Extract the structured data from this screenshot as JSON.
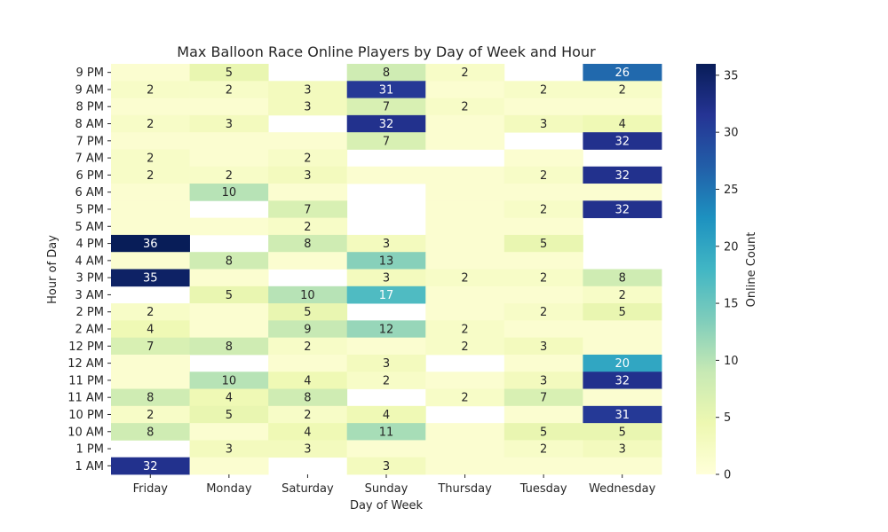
{
  "chart_data": {
    "type": "heatmap",
    "title": "Max Balloon Race Online Players by Day of Week and Hour",
    "xlabel": "Day of Week",
    "ylabel": "Hour of Day",
    "colorbar_label": "Online Count",
    "colormap": "YlGnBu",
    "vmin": 0,
    "vmax": 36,
    "colorbar_ticks": [
      0,
      5,
      10,
      15,
      20,
      25,
      30,
      35
    ],
    "colorbar_tick_labels": [
      "0",
      "5",
      "10",
      "15",
      "20",
      "25",
      "30",
      "35"
    ],
    "columns": [
      "Friday",
      "Monday",
      "Saturday",
      "Sunday",
      "Thursday",
      "Tuesday",
      "Wednesday"
    ],
    "rows": [
      "9 PM",
      "9 AM",
      "8 PM",
      "8 AM",
      "7 PM",
      "7 AM",
      "6 PM",
      "6 AM",
      "5 PM",
      "5 AM",
      "4 PM",
      "4 AM",
      "3 PM",
      "3 AM",
      "2 PM",
      "2 AM",
      "12 PM",
      "12 AM",
      "11 PM",
      "11 AM",
      "10 PM",
      "10 AM",
      "1 PM",
      "1 AM"
    ],
    "values": [
      [
        1,
        5,
        null,
        8,
        2,
        null,
        26
      ],
      [
        2,
        2,
        3,
        31,
        1,
        2,
        2
      ],
      [
        1,
        1,
        3,
        7,
        2,
        1,
        1
      ],
      [
        2,
        3,
        null,
        32,
        1,
        3,
        4
      ],
      [
        1,
        1,
        1,
        7,
        1,
        null,
        32
      ],
      [
        2,
        1,
        2,
        null,
        null,
        1,
        null
      ],
      [
        2,
        2,
        3,
        1,
        1,
        2,
        32
      ],
      [
        1,
        10,
        1,
        null,
        1,
        1,
        1
      ],
      [
        1,
        null,
        7,
        null,
        1,
        2,
        32
      ],
      [
        1,
        1,
        2,
        null,
        1,
        1,
        null
      ],
      [
        36,
        null,
        8,
        3,
        1,
        5,
        null
      ],
      [
        1,
        8,
        1,
        13,
        1,
        1,
        null
      ],
      [
        35,
        1,
        null,
        3,
        2,
        2,
        8
      ],
      [
        null,
        5,
        10,
        17,
        1,
        1,
        2
      ],
      [
        2,
        1,
        5,
        null,
        1,
        2,
        5
      ],
      [
        4,
        1,
        9,
        12,
        2,
        1,
        1
      ],
      [
        7,
        8,
        2,
        1,
        2,
        3,
        1
      ],
      [
        1,
        null,
        1,
        3,
        null,
        1,
        20
      ],
      [
        1,
        10,
        4,
        2,
        1,
        3,
        32
      ],
      [
        8,
        4,
        8,
        null,
        2,
        7,
        1
      ],
      [
        2,
        5,
        2,
        4,
        null,
        1,
        31
      ],
      [
        8,
        1,
        4,
        11,
        1,
        5,
        5
      ],
      [
        null,
        3,
        3,
        1,
        1,
        2,
        3
      ],
      [
        32,
        1,
        null,
        3,
        1,
        1,
        1
      ]
    ],
    "annotate_min": 2
  }
}
